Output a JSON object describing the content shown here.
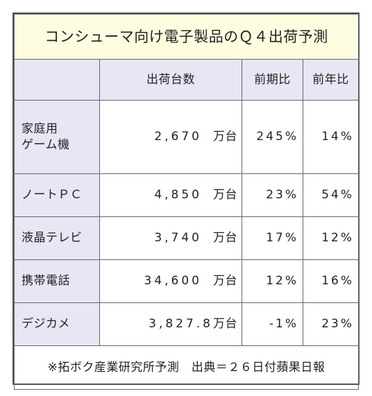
{
  "title": "コンシューマ向け電子製品のＱ４出荷予測",
  "headers": {
    "category": "",
    "shipments": "出荷台数",
    "qoq": "前期比",
    "yoy": "前年比"
  },
  "rows": [
    {
      "name_line1": "家庭用",
      "name_line2": "ゲーム機",
      "shipments": "2,670",
      "unit": "万台",
      "qoq": "245%",
      "yoy": "14%"
    },
    {
      "name": "ノートＰＣ",
      "shipments": "4,850",
      "unit": "万台",
      "qoq": "23%",
      "yoy": "54%"
    },
    {
      "name": "液晶テレビ",
      "shipments": "3,740",
      "unit": "万台",
      "qoq": "17%",
      "yoy": "12%"
    },
    {
      "name": "携帯電話",
      "shipments": "34,600",
      "unit": "万台",
      "qoq": "12%",
      "yoy": "16%"
    },
    {
      "name": "デジカメ",
      "shipments": "3,827.8",
      "unit": "万台",
      "qoq": "-1%",
      "yoy": "23%"
    }
  ],
  "footer": "※拓ボク産業研究所予測　出典＝２６日付蘋果日報",
  "colors": {
    "title_bg": "#fffde0",
    "header_bg": "#e6e6f5",
    "border": "#555555"
  }
}
